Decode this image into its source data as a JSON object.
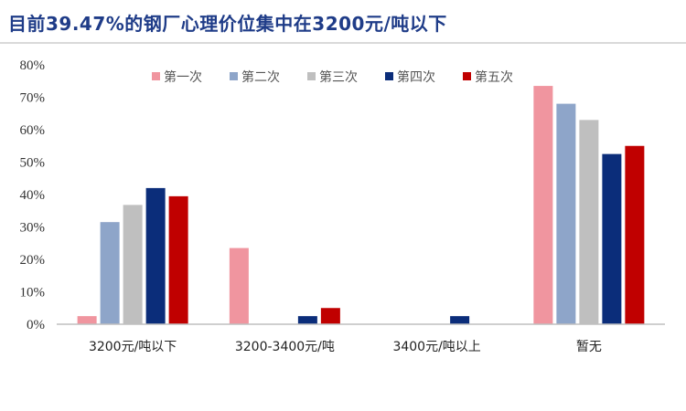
{
  "chart_data": {
    "type": "bar",
    "title": "目前39.47%的钢厂心理价位集中在3200元/吨以下",
    "categories": [
      "3200元/吨以下",
      "3200-3400元/吨",
      "3400元/吨以上",
      "暂无"
    ],
    "series": [
      {
        "name": "第一次",
        "color": "#f0959f",
        "values": [
          2.5,
          23.5,
          0,
          73.5
        ]
      },
      {
        "name": "第二次",
        "color": "#8ea5c9",
        "values": [
          31.5,
          0,
          0,
          68.0
        ]
      },
      {
        "name": "第三次",
        "color": "#bfbfbf",
        "values": [
          36.8,
          0,
          0,
          63.0
        ]
      },
      {
        "name": "第四次",
        "color": "#0b2d7a",
        "values": [
          42.0,
          2.5,
          2.5,
          52.5
        ]
      },
      {
        "name": "第五次",
        "color": "#c00000",
        "values": [
          39.47,
          5.0,
          0,
          55.0
        ]
      }
    ],
    "yticks": [
      "0%",
      "10%",
      "20%",
      "30%",
      "40%",
      "50%",
      "60%",
      "70%",
      "80%"
    ],
    "ylim": [
      0,
      80
    ],
    "legend_position": "top",
    "grid": false
  }
}
